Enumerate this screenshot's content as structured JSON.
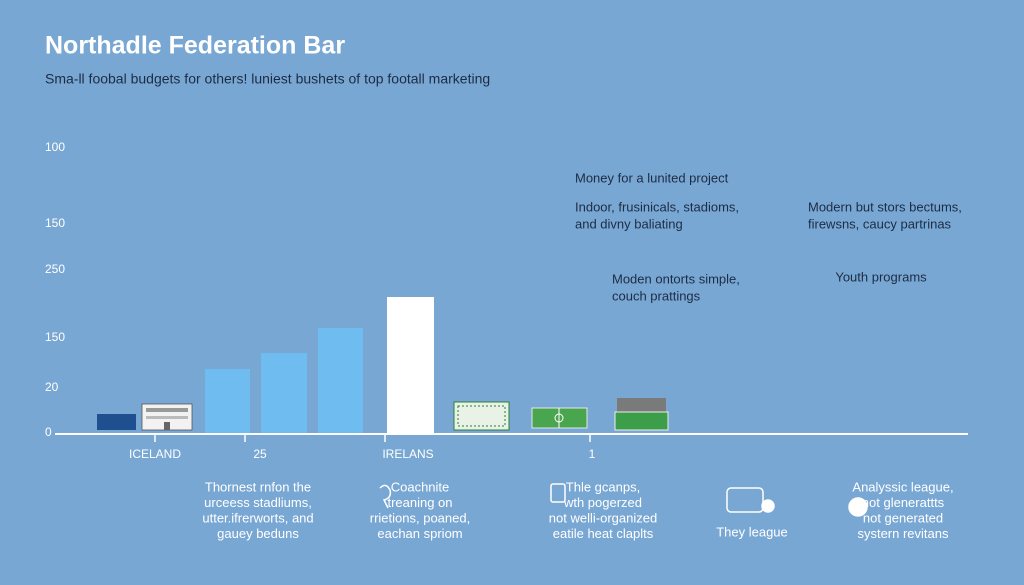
{
  "title": "Northadle Federation Bar",
  "subtitle": "Sma-ll foobal budgets for others! luniest bushets of top footall marketing",
  "y_labels": [
    "100",
    "150",
    "250",
    "150",
    "20",
    "0"
  ],
  "x_labels": [
    "ICELAND",
    "25",
    "IRELANS",
    "1"
  ],
  "annotations": [
    [
      "Money for a lunited project"
    ],
    [
      "Indoor, frusinicals, stadioms,",
      "and divny baliating"
    ],
    [
      "Modern but stors bectums,",
      "firewsns, caucy partrinas"
    ],
    [
      "Moden ontorts simple,",
      "couch prattings"
    ],
    [
      "Youth programs"
    ]
  ],
  "notes": [
    [
      "Thornest rnfon the",
      "urceess stadliums,",
      "utter.ifrerworts, and",
      "gauey beduns"
    ],
    [
      "Coachnite",
      "treaning on",
      "rrietions, poaned,",
      "eachan spriom"
    ],
    [
      "Thle gcanps,",
      "wth pogerzed",
      "not welli-organized",
      "eatile heat claplts"
    ],
    [
      "They league"
    ],
    [
      "Analyssic league,",
      "not glenerattts",
      "not generated",
      "systern revitans"
    ]
  ]
}
